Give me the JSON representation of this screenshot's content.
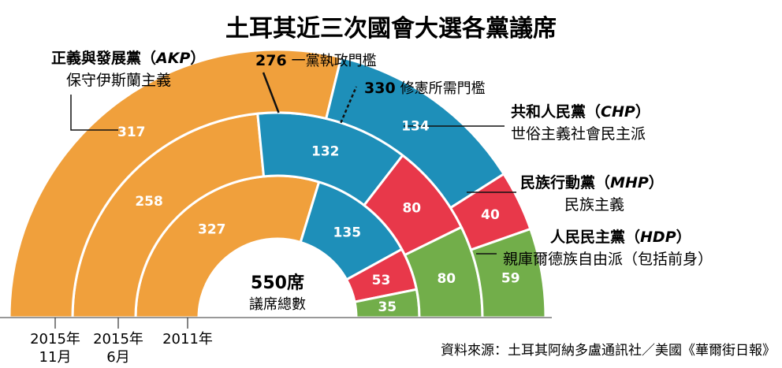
{
  "title": "土耳其近三次國會大選各黨議席",
  "chart_data": {
    "type": "nested-semicircle",
    "total_seats": 550,
    "total_label": "議席總數",
    "total_unit": "席",
    "parties": [
      {
        "key": "AKP",
        "name": "正義與發展黨",
        "abbr": "AKP",
        "ideology": "保守伊斯蘭主義",
        "color": "#f0a03c"
      },
      {
        "key": "CHP",
        "name": "共和人民黨",
        "abbr": "CHP",
        "ideology": "世俗主義社會民主派",
        "color": "#1e8fb9"
      },
      {
        "key": "MHP",
        "name": "民族行動黨",
        "abbr": "MHP",
        "ideology": "民族主義",
        "color": "#e8384a"
      },
      {
        "key": "HDP",
        "name": "人民民主黨",
        "abbr": "HDP",
        "ideology": "親庫爾德族自由派（包括前身）",
        "color": "#72ae4a"
      }
    ],
    "rings": [
      {
        "label_year": "2011年",
        "label_month": "",
        "seats": {
          "AKP": 327,
          "CHP": 135,
          "MHP": 53,
          "HDP": 35
        }
      },
      {
        "label_year": "2015年",
        "label_month": "6月",
        "seats": {
          "AKP": 258,
          "CHP": 132,
          "MHP": 80,
          "HDP": 80
        }
      },
      {
        "label_year": "2015年",
        "label_month": "11月",
        "seats": {
          "AKP": 317,
          "CHP": 134,
          "MHP": 40,
          "HDP": 59
        }
      }
    ],
    "thresholds": [
      {
        "seats": 276,
        "label": "一黨執政門檻"
      },
      {
        "seats": 330,
        "label": "修憲所需門檻"
      }
    ]
  },
  "source": "資料來源：土耳其阿納多盧通訊社／美國《華爾街日報》"
}
